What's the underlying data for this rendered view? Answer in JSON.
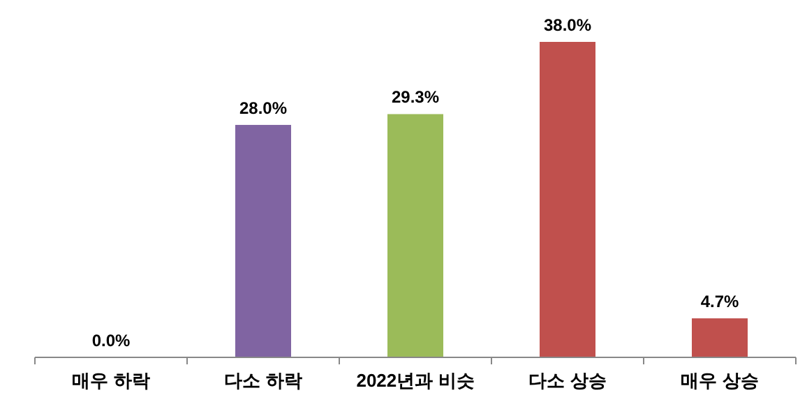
{
  "chart_data": {
    "type": "bar",
    "categories": [
      "매우 하락",
      "다소 하락",
      "2022년과 비슷",
      "다소 상승",
      "매우 상승"
    ],
    "values": [
      0.0,
      28.0,
      29.3,
      38.0,
      4.7
    ],
    "colors": [
      "#8064a2",
      "#8064a2",
      "#9bbb59",
      "#c0504d",
      "#c0504d"
    ],
    "value_labels": [
      "0.0%",
      "28.0%",
      "29.3%",
      "38.0%",
      "4.7%"
    ]
  }
}
